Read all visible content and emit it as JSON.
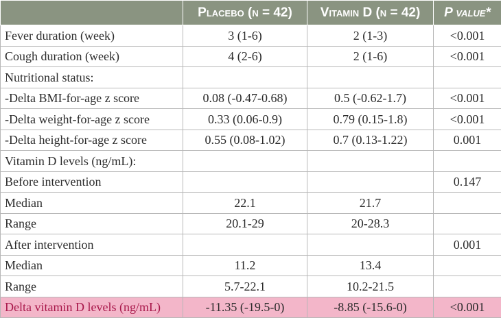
{
  "table": {
    "headers": [
      "",
      "Placebo (n = 42)",
      "Vitamin D (n = 42)",
      "P value*"
    ],
    "rows": [
      {
        "label": "Fever duration (week)",
        "placebo": "3 (1-6)",
        "vitd": "2 (1-3)",
        "p": "<0.001"
      },
      {
        "label": "Cough duration (week)",
        "placebo": "4 (2-6)",
        "vitd": "2 (1-6)",
        "p": "<0.001"
      },
      {
        "label": "Nutritional status:",
        "placebo": "",
        "vitd": "",
        "p": ""
      },
      {
        "label": "-Delta BMI-for-age z score",
        "placebo": "0.08 (-0.47-0.68)",
        "vitd": "0.5 (-0.62-1.7)",
        "p": "<0.001"
      },
      {
        "label": "-Delta weight-for-age z score",
        "placebo": "0.33 (0.06-0.9)",
        "vitd": "0.79 (0.15-1.8)",
        "p": "<0.001"
      },
      {
        "label": "-Delta height-for-age z score",
        "placebo": "0.55 (0.08-1.02)",
        "vitd": "0.7 (0.13-1.22)",
        "p": "0.001"
      },
      {
        "label": "Vitamin D levels (ng/mL):",
        "placebo": "",
        "vitd": "",
        "p": ""
      },
      {
        "label": "Before intervention",
        "placebo": "",
        "vitd": "",
        "p": "0.147"
      },
      {
        "label": "Median",
        "placebo": "22.1",
        "vitd": "21.7",
        "p": ""
      },
      {
        "label": "Range",
        "placebo": "20.1-29",
        "vitd": "20-28.3",
        "p": ""
      },
      {
        "label": "After intervention",
        "placebo": "",
        "vitd": "",
        "p": "0.001"
      },
      {
        "label": "Median",
        "placebo": "11.2",
        "vitd": "13.4",
        "p": ""
      },
      {
        "label": "Range",
        "placebo": "5.7-22.1",
        "vitd": "10.2-21.5",
        "p": ""
      },
      {
        "label": "Delta vitamin D levels (ng/mL)",
        "placebo": "-11.35 (-19.5-0)",
        "vitd": "-8.85 (-15.6-0)",
        "p": "<0.001"
      }
    ]
  },
  "colors": {
    "header_bg": "#8a9481",
    "highlight_row": "#f3b6c9",
    "highlight_text": "#a8174a"
  }
}
